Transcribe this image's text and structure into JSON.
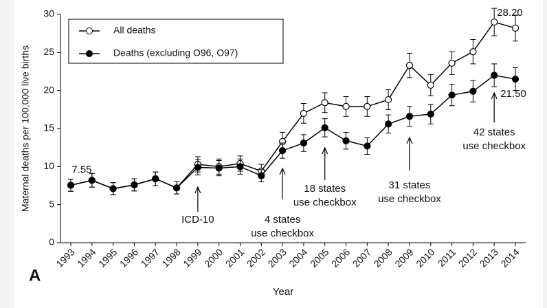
{
  "chart_data": {
    "type": "line",
    "panel": "A",
    "x_label": "Year",
    "y_label": "Maternal deaths per 100,000 live births",
    "categories": [
      "1993",
      "1994",
      "1995",
      "1996",
      "1997",
      "1998",
      "1999",
      "2000",
      "2001",
      "2002",
      "2003",
      "2004",
      "2005",
      "2006",
      "2007",
      "2008",
      "2009",
      "2010",
      "2011",
      "2012",
      "2013",
      "2014"
    ],
    "series": [
      {
        "name": "All deaths",
        "color": "#ffffff",
        "values": [
          7.55,
          8.2,
          7.1,
          7.6,
          8.4,
          7.2,
          10.3,
          10.0,
          10.4,
          9.4,
          13.3,
          17.0,
          18.4,
          17.9,
          17.9,
          18.8,
          23.3,
          20.7,
          23.6,
          25.1,
          29.0,
          28.2
        ],
        "errors": [
          0.8,
          0.9,
          0.8,
          0.8,
          0.9,
          0.8,
          1.0,
          1.0,
          1.0,
          0.9,
          1.2,
          1.3,
          1.3,
          1.3,
          1.3,
          1.3,
          1.6,
          1.4,
          1.5,
          1.6,
          1.8,
          1.7
        ],
        "value_labels": [
          null,
          null,
          null,
          null,
          null,
          null,
          null,
          null,
          null,
          null,
          null,
          null,
          null,
          null,
          null,
          null,
          null,
          null,
          null,
          null,
          null,
          "28.20"
        ]
      },
      {
        "name": "Deaths (excluding O96, O97)",
        "color": "#000000",
        "values": [
          7.55,
          8.2,
          7.1,
          7.6,
          8.4,
          7.2,
          9.9,
          9.8,
          10.0,
          8.8,
          12.1,
          13.1,
          15.1,
          13.4,
          12.7,
          15.6,
          16.6,
          16.9,
          19.4,
          19.9,
          22.0,
          21.5
        ],
        "errors": [
          0.8,
          0.9,
          0.8,
          0.8,
          0.9,
          0.8,
          1.0,
          1.0,
          1.0,
          0.8,
          1.0,
          1.1,
          1.2,
          1.1,
          1.1,
          1.2,
          1.3,
          1.3,
          1.4,
          1.4,
          1.5,
          1.5
        ],
        "value_labels": [
          "7.55",
          null,
          null,
          null,
          null,
          null,
          null,
          null,
          null,
          null,
          null,
          null,
          null,
          null,
          null,
          null,
          null,
          null,
          null,
          null,
          null,
          "21.50"
        ]
      }
    ],
    "annotations": [
      {
        "year": "1999",
        "lines": [
          "ICD-10"
        ]
      },
      {
        "year": "2003",
        "lines": [
          "4 states",
          "use checkbox"
        ]
      },
      {
        "year": "2005",
        "lines": [
          "18 states",
          "use checkbox"
        ]
      },
      {
        "year": "2009",
        "lines": [
          "31 states",
          "use checkbox"
        ]
      },
      {
        "year": "2013",
        "lines": [
          "42 states",
          "use checkbox"
        ]
      }
    ],
    "ylim": [
      0,
      30
    ],
    "yticks": [
      0,
      5,
      10,
      15,
      20,
      25,
      30
    ],
    "legend": "top-left"
  }
}
